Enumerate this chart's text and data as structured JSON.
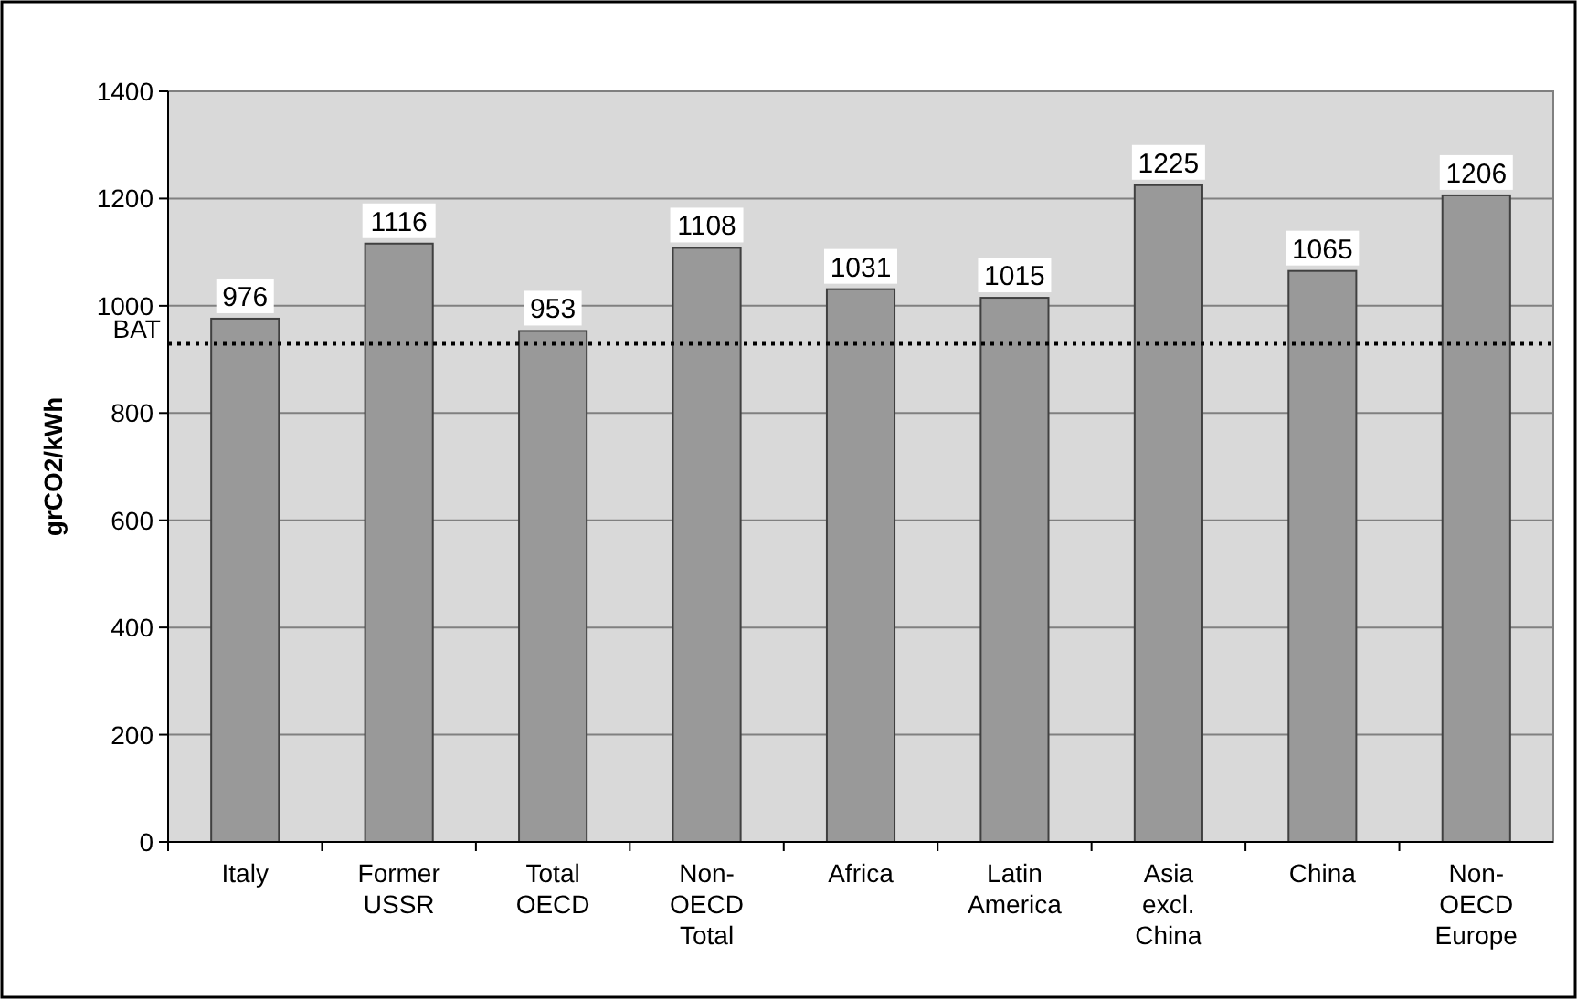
{
  "chart_data": {
    "type": "bar",
    "ylabel": "grCO2/kWh",
    "categories": [
      "Italy",
      "Former USSR",
      "Total OECD",
      "Non-OECD Total",
      "Africa",
      "Latin America",
      "Asia excl. China",
      "China",
      "Non-OECD Europe"
    ],
    "values": [
      976,
      1116,
      953,
      1108,
      1031,
      1015,
      1225,
      1065,
      1206
    ],
    "color": "#999999",
    "ylim": [
      0,
      1400
    ],
    "yticks": [
      0,
      200,
      400,
      600,
      800,
      1000,
      1200,
      1400
    ],
    "grid": "y",
    "data_labels": true,
    "ref_lines": [
      {
        "axis": "y",
        "value": 930,
        "label": "BAT",
        "line_style": "dotted",
        "color": "#000000"
      }
    ]
  }
}
